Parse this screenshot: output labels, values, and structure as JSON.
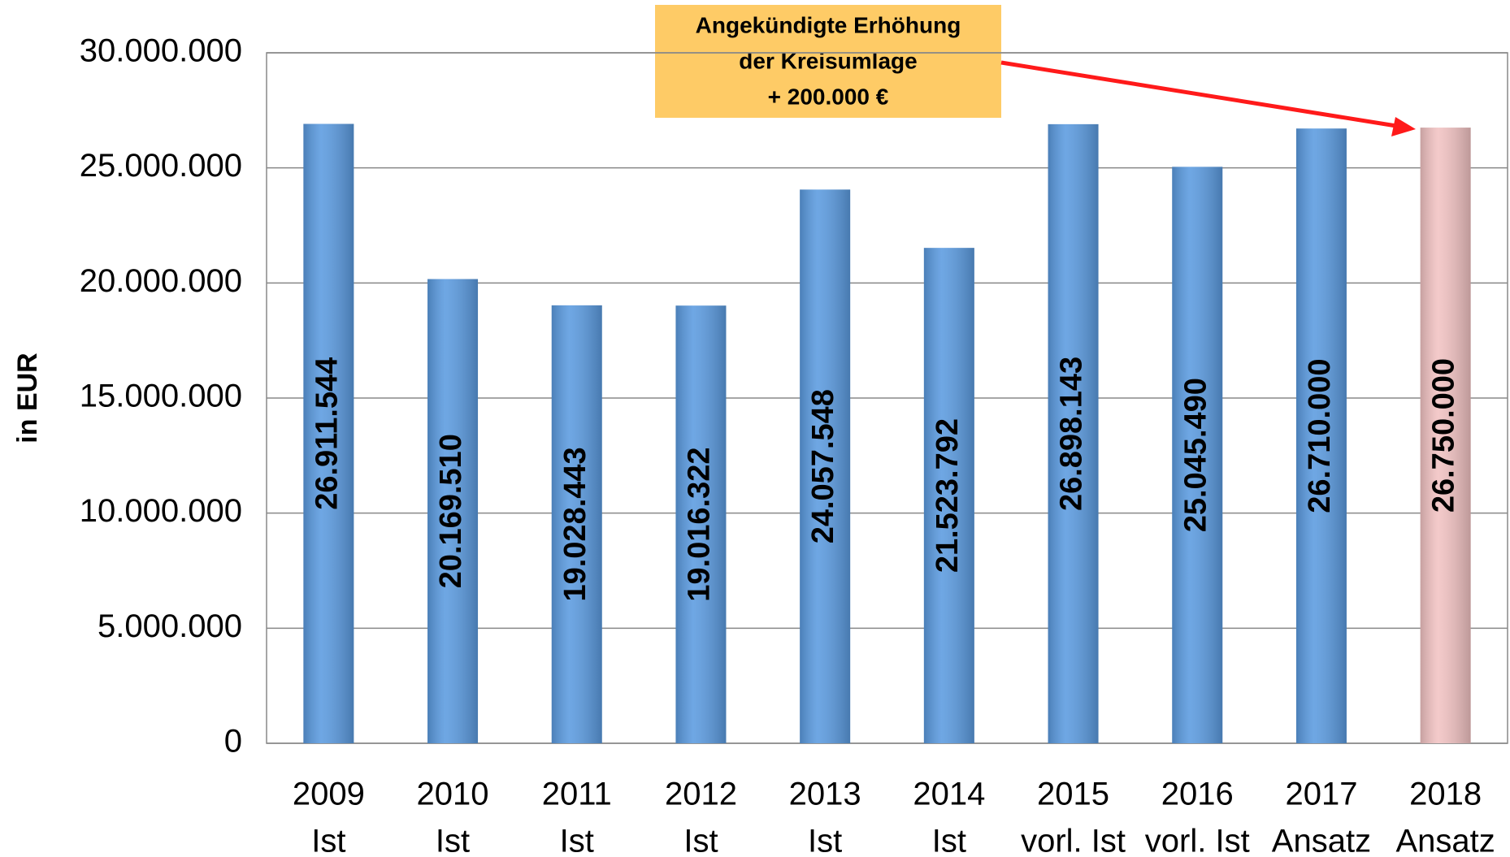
{
  "chart_data": {
    "type": "bar",
    "y_label": "in EUR",
    "annotation": [
      "Angekündigte Erhöhung",
      "der Kreisumlage",
      "+ 200.000 €"
    ],
    "categories": [
      [
        "2009",
        "Ist"
      ],
      [
        "2010",
        "Ist"
      ],
      [
        "2011",
        "Ist"
      ],
      [
        "2012",
        "Ist"
      ],
      [
        "2013",
        "Ist"
      ],
      [
        "2014",
        "Ist"
      ],
      [
        "2015",
        "vorl. Ist"
      ],
      [
        "2016",
        "vorl. Ist"
      ],
      [
        "2017",
        "Ansatz"
      ],
      [
        "2018",
        "Ansatz"
      ]
    ],
    "values": [
      26911544,
      20169510,
      19028443,
      19016322,
      24057548,
      21523792,
      26898143,
      25045490,
      26710000,
      26750000
    ],
    "value_labels": [
      "26.911.544",
      "20.169.510",
      "19.028.443",
      "19.016.322",
      "24.057.548",
      "21.523.792",
      "26.898.143",
      "25.045.490",
      "26.710.000",
      "26.750.000"
    ],
    "colors": [
      "#5b9be0",
      "#5b9be0",
      "#5b9be0",
      "#5b9be0",
      "#5b9be0",
      "#5b9be0",
      "#5b9be0",
      "#5b9be0",
      "#5b9be0",
      "#f2c3c3"
    ],
    "ylim": [
      0,
      30000000
    ],
    "yticks": [
      0,
      {
        "value": 5000000,
        "label": "5.000.000"
      },
      {
        "value": 10000000,
        "label": "10.000.000"
      },
      {
        "value": 15000000,
        "label": "15.000.000"
      },
      {
        "value": 20000000,
        "label": "20.000.000"
      },
      {
        "value": 25000000,
        "label": "25.000.000"
      },
      {
        "value": 30000000,
        "label": "30.000.000"
      }
    ],
    "grid": true
  }
}
